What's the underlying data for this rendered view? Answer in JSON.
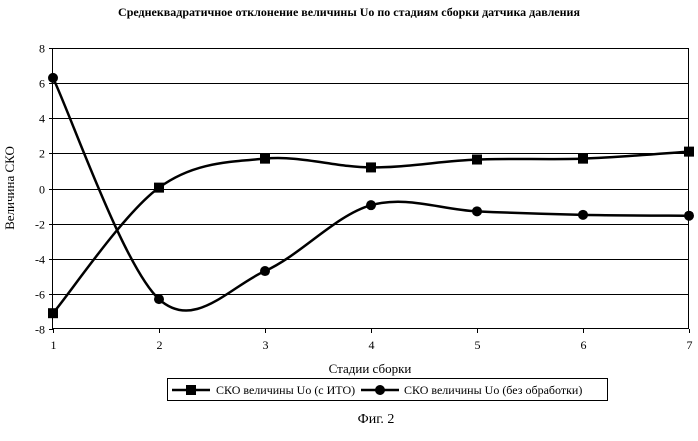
{
  "chart_data": {
    "type": "line",
    "title": "Среднеквадратичное отклонение величины Uo по стадиям сборки датчика давления",
    "xlabel": "Стадии сборки",
    "ylabel": "Величина СКО",
    "x": [
      1,
      2,
      3,
      4,
      5,
      6,
      7
    ],
    "xlim": [
      1,
      7
    ],
    "ylim": [
      -8,
      8
    ],
    "x_ticks": [
      "1",
      "2",
      "3",
      "4",
      "5",
      "6",
      "7"
    ],
    "y_ticks": [
      "8",
      "6",
      "4",
      "2",
      "0",
      "-2",
      "-4",
      "-6",
      "-8"
    ],
    "grid": "horizontal",
    "legend_position": "bottom",
    "smooth": true,
    "series": [
      {
        "name": "СКО величины Uo (с ИТО)",
        "marker": "square",
        "values": [
          -7.1,
          0.05,
          1.7,
          1.2,
          1.65,
          1.7,
          2.1
        ]
      },
      {
        "name": "СКО величины Uo (без обработки)",
        "marker": "circle",
        "values": [
          6.3,
          -6.3,
          -4.7,
          -0.95,
          -1.3,
          -1.5,
          -1.55
        ]
      }
    ],
    "caption": "Фиг. 2"
  }
}
